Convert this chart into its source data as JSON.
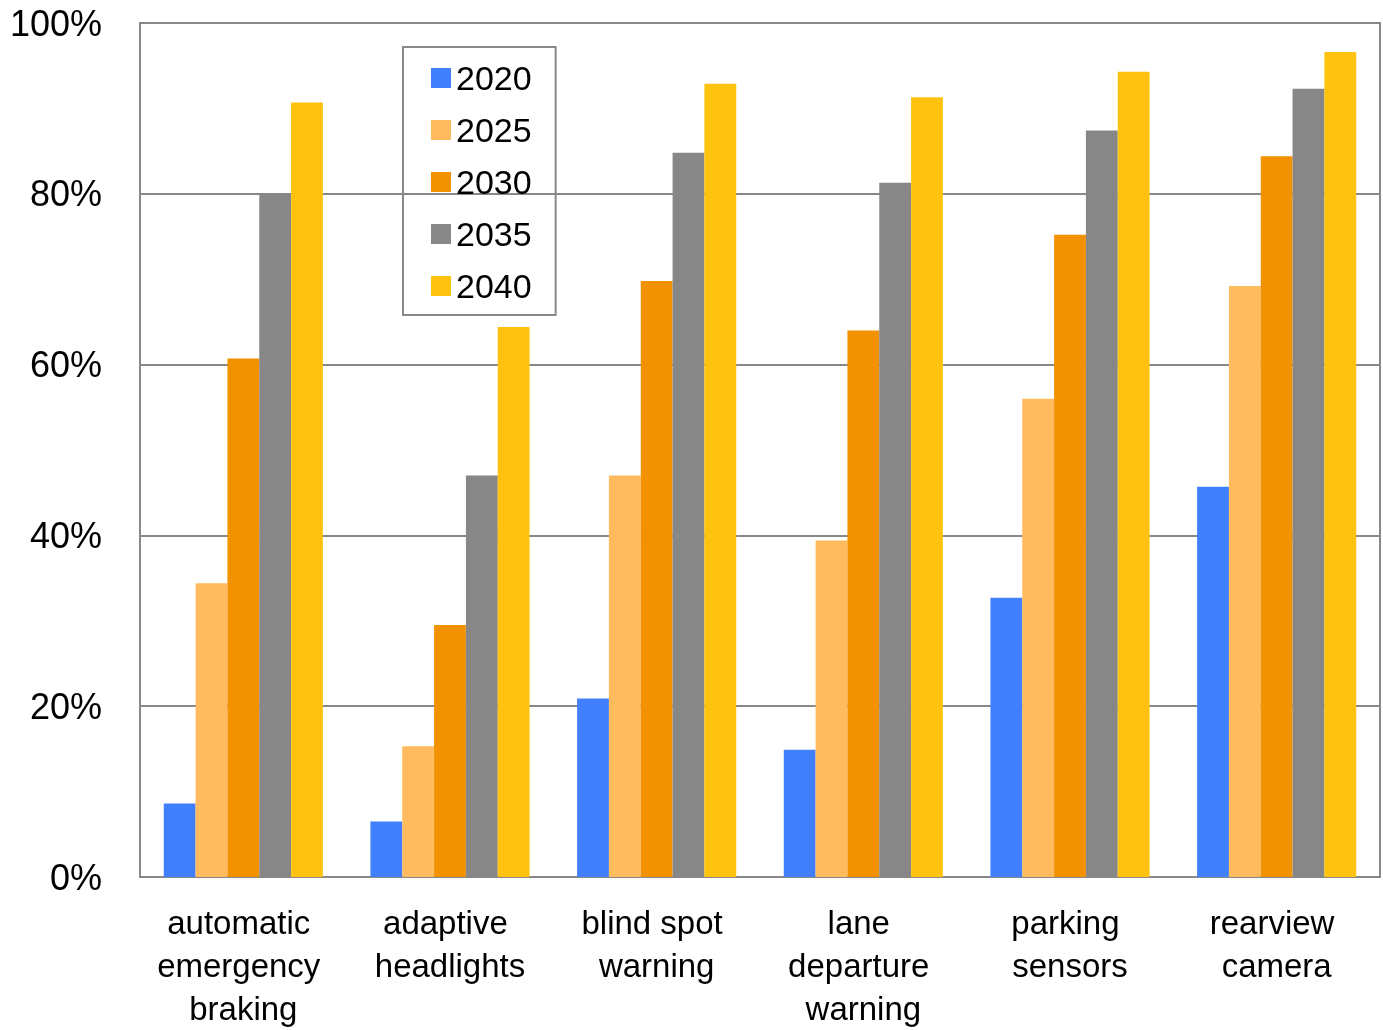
{
  "chart_data": {
    "type": "bar",
    "categories": [
      "automatic emergency braking",
      "adaptive headlights",
      "blind spot warning",
      "lane departure warning",
      "parking sensors",
      "rearview camera"
    ],
    "series": [
      {
        "name": "2020",
        "color": "#4080ff",
        "values": [
          8.6,
          6.5,
          20.9,
          14.9,
          32.7,
          45.7
        ]
      },
      {
        "name": "2025",
        "color": "#ffbb5e",
        "values": [
          34.4,
          15.3,
          47,
          39.4,
          56,
          69.2
        ]
      },
      {
        "name": "2030",
        "color": "#f39200",
        "values": [
          60.7,
          29.5,
          69.8,
          64,
          75.2,
          84.4
        ]
      },
      {
        "name": "2035",
        "color": "#878787",
        "values": [
          80,
          47,
          84.8,
          81.3,
          87.4,
          92.3
        ]
      },
      {
        "name": "2040",
        "color": "#ffc20e",
        "values": [
          90.7,
          64.4,
          92.9,
          91.3,
          94.3,
          96.6
        ]
      }
    ],
    "ylim": [
      0,
      100
    ],
    "yticks": [
      {
        "value": 0,
        "label": "0%"
      },
      {
        "value": 20,
        "label": "20%"
      },
      {
        "value": 40,
        "label": "40%"
      },
      {
        "value": 60,
        "label": "60%"
      },
      {
        "value": 80,
        "label": "80%"
      },
      {
        "value": 100,
        "label": "100%"
      }
    ],
    "grid": "y",
    "legend": "top left"
  }
}
